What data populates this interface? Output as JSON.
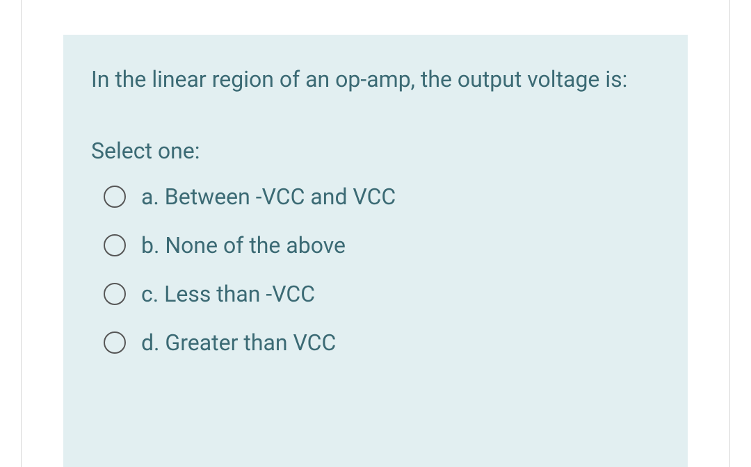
{
  "question": {
    "text": "In the linear region of an op-amp, the output voltage is:",
    "prompt": "Select one:",
    "options": [
      {
        "letter": "a.",
        "text": "Between -VCC and VCC",
        "selected": false
      },
      {
        "letter": "b.",
        "text": "None of the above",
        "selected": false
      },
      {
        "letter": "c.",
        "text": "Less than -VCC",
        "selected": false
      },
      {
        "letter": "d.",
        "text": "Greater than VCC",
        "selected": false
      }
    ]
  },
  "colors": {
    "card_background": "#e2eff1",
    "text_color": "#3b6a74",
    "radio_border": "#565656",
    "page_background": "#ffffff",
    "outer_border": "#d8d8d8"
  },
  "typography": {
    "font_size_pt": 24,
    "font_weight": 400
  }
}
